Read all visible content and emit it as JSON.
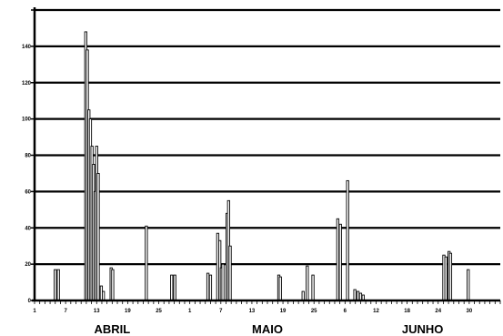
{
  "chart_data": {
    "type": "bar",
    "y_axis": {
      "ylim": [
        0,
        160
      ],
      "ticks": [
        0,
        20,
        40,
        60,
        80,
        100,
        120,
        140,
        160
      ],
      "tick_labels": [
        "0",
        "20",
        "40",
        "60",
        "80",
        "100",
        "120",
        "140",
        ""
      ]
    },
    "x_axis": {
      "day_range": [
        1,
        91
      ],
      "ticks": [
        1,
        7,
        13,
        19,
        25,
        31,
        37,
        43,
        49,
        55,
        61,
        67,
        73,
        79,
        85,
        91
      ],
      "tick_labels": [
        "1",
        "7",
        "13",
        "19",
        "25",
        "1",
        "7",
        "13",
        "19",
        "25",
        "6",
        "12",
        "18",
        "24",
        "30",
        ""
      ],
      "month_labels": [
        {
          "text": "ABRIL",
          "day": 16
        },
        {
          "text": "MAIO",
          "day": 46
        },
        {
          "text": "JUNHO",
          "day": 76
        }
      ]
    },
    "grid": "horizontal",
    "bars": [
      {
        "x": 5.0,
        "y": 17
      },
      {
        "x": 5.6,
        "y": 17
      },
      {
        "x": 10.9,
        "y": 148
      },
      {
        "x": 11.2,
        "y": 138
      },
      {
        "x": 11.5,
        "y": 105
      },
      {
        "x": 11.8,
        "y": 100
      },
      {
        "x": 12.1,
        "y": 85
      },
      {
        "x": 12.4,
        "y": 75
      },
      {
        "x": 12.7,
        "y": 60
      },
      {
        "x": 13.0,
        "y": 85
      },
      {
        "x": 13.3,
        "y": 70
      },
      {
        "x": 13.9,
        "y": 8
      },
      {
        "x": 14.3,
        "y": 5
      },
      {
        "x": 15.8,
        "y": 18
      },
      {
        "x": 16.1,
        "y": 17
      },
      {
        "x": 22.6,
        "y": 41
      },
      {
        "x": 27.5,
        "y": 14
      },
      {
        "x": 28.1,
        "y": 14
      },
      {
        "x": 34.5,
        "y": 15
      },
      {
        "x": 35.0,
        "y": 14
      },
      {
        "x": 36.4,
        "y": 37
      },
      {
        "x": 36.8,
        "y": 33
      },
      {
        "x": 37.1,
        "y": 18
      },
      {
        "x": 37.4,
        "y": 20
      },
      {
        "x": 38.2,
        "y": 48
      },
      {
        "x": 38.5,
        "y": 55
      },
      {
        "x": 38.8,
        "y": 30
      },
      {
        "x": 48.2,
        "y": 14
      },
      {
        "x": 48.5,
        "y": 13
      },
      {
        "x": 52.9,
        "y": 5
      },
      {
        "x": 53.7,
        "y": 19
      },
      {
        "x": 54.8,
        "y": 14
      },
      {
        "x": 59.6,
        "y": 45
      },
      {
        "x": 60.1,
        "y": 42
      },
      {
        "x": 61.5,
        "y": 66
      },
      {
        "x": 62.9,
        "y": 6
      },
      {
        "x": 63.5,
        "y": 5
      },
      {
        "x": 64.0,
        "y": 4
      },
      {
        "x": 64.5,
        "y": 3
      },
      {
        "x": 80.1,
        "y": 25
      },
      {
        "x": 80.5,
        "y": 24
      },
      {
        "x": 81.1,
        "y": 27
      },
      {
        "x": 81.4,
        "y": 26
      },
      {
        "x": 84.8,
        "y": 17
      }
    ]
  }
}
